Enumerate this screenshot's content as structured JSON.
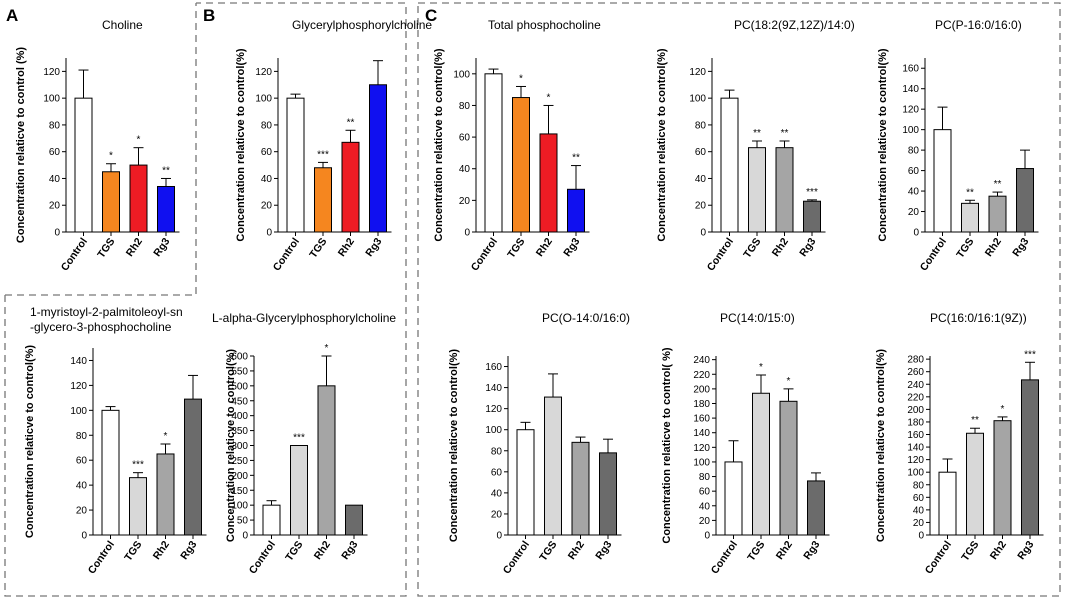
{
  "figure": {
    "panel_labels": [
      "A",
      "B",
      "C"
    ],
    "fill_colors": {
      "white": "#ffffff",
      "orange": "#f5861f",
      "red": "#ee1c24",
      "blue": "#1010f0",
      "light_gray": "#d8d8d8",
      "mid_gray": "#a5a5a5",
      "dark_gray": "#6b6b6b"
    }
  },
  "chart_data": [
    {
      "type": "bar",
      "panel": "A",
      "title": "Choline",
      "ylabel": "Concentration relaticve to control (%)",
      "categories": [
        "Control",
        "TGS",
        "Rh2",
        "Rg3"
      ],
      "values": [
        100,
        45,
        50,
        34
      ],
      "errors": [
        21,
        6,
        13,
        6
      ],
      "significance": [
        "",
        "*",
        "*",
        "**"
      ],
      "colors": [
        "white",
        "orange",
        "red",
        "blue"
      ],
      "ylim": [
        0,
        130
      ],
      "yticks": [
        0,
        20,
        40,
        60,
        80,
        100,
        120
      ]
    },
    {
      "type": "bar",
      "panel": "B",
      "title": "Glycerylphosphorylcholine",
      "ylabel": "Concentration  relaticve to control(%)",
      "categories": [
        "Control",
        "TGS",
        "Rh2",
        "Rg3"
      ],
      "values": [
        100,
        48,
        67,
        110
      ],
      "errors": [
        3,
        4,
        9,
        18
      ],
      "significance": [
        "",
        "***",
        "**",
        ""
      ],
      "colors": [
        "white",
        "orange",
        "red",
        "blue"
      ],
      "ylim": [
        0,
        130
      ],
      "yticks": [
        0,
        20,
        40,
        60,
        80,
        100,
        120
      ]
    },
    {
      "type": "bar",
      "panel": "C",
      "title": "Total phosphocholine",
      "ylabel": "Concentration  relaticve to control(%)",
      "categories": [
        "Control",
        "TGS",
        "Rh2",
        "Rg3"
      ],
      "values": [
        100,
        85,
        62,
        27
      ],
      "errors": [
        3,
        7,
        18,
        15
      ],
      "significance": [
        "",
        "*",
        "*",
        "**"
      ],
      "colors": [
        "white",
        "orange",
        "red",
        "blue"
      ],
      "ylim": [
        0,
        110
      ],
      "yticks": [
        0,
        20,
        40,
        60,
        80,
        100
      ]
    },
    {
      "type": "bar",
      "panel": "C",
      "title": "PC(18:2(9Z,12Z)/14:0)",
      "ylabel": "Concentration relaticve to control(%)",
      "categories": [
        "Control",
        "TGS",
        "Rh2",
        "Rg3"
      ],
      "values": [
        100,
        63,
        63,
        23
      ],
      "errors": [
        6,
        5,
        5,
        1
      ],
      "significance": [
        "",
        "**",
        "**",
        "***"
      ],
      "colors": [
        "white",
        "light_gray",
        "mid_gray",
        "dark_gray"
      ],
      "ylim": [
        0,
        130
      ],
      "yticks": [
        0,
        20,
        40,
        60,
        80,
        100,
        120
      ]
    },
    {
      "type": "bar",
      "panel": "C",
      "title": "PC(P-16:0/16:0)",
      "ylabel": "Concentration  relaticve to control(%)",
      "categories": [
        "Control",
        "TGS",
        "Rh2",
        "Rg3"
      ],
      "values": [
        100,
        28,
        35,
        62
      ],
      "errors": [
        22,
        3,
        4,
        18
      ],
      "significance": [
        "",
        "**",
        "**",
        ""
      ],
      "colors": [
        "white",
        "light_gray",
        "mid_gray",
        "dark_gray"
      ],
      "ylim": [
        0,
        170
      ],
      "yticks": [
        0,
        20,
        40,
        60,
        80,
        100,
        120,
        140,
        160
      ]
    },
    {
      "type": "bar",
      "panel": "A",
      "title": "1-myristoyl-2-palmitoleoyl-sn\n-glycero-3-phosphocholine",
      "ylabel": "Concentration relaticve to control(%)",
      "categories": [
        "Control",
        "TGS",
        "Rh2",
        "Rg3"
      ],
      "values": [
        100,
        46,
        65,
        109
      ],
      "errors": [
        3,
        4,
        8,
        19
      ],
      "significance": [
        "",
        "***",
        "*",
        ""
      ],
      "colors": [
        "white",
        "light_gray",
        "mid_gray",
        "dark_gray"
      ],
      "ylim": [
        0,
        150
      ],
      "yticks": [
        0,
        20,
        40,
        60,
        80,
        100,
        120,
        140
      ]
    },
    {
      "type": "bar",
      "panel": "B",
      "title": "L-alpha-Glycerylphosphorylcholine",
      "ylabel": "Concentration  relaticve to control(%)",
      "categories": [
        "Control",
        "TGS",
        "Rh2",
        "Rg3"
      ],
      "values": [
        100,
        300,
        500,
        100
      ],
      "errors": [
        15,
        0,
        100,
        0
      ],
      "significance": [
        "",
        "***",
        "*",
        ""
      ],
      "colors": [
        "white",
        "light_gray",
        "mid_gray",
        "dark_gray"
      ],
      "ylim": [
        0,
        600
      ],
      "yticks": [
        0,
        50,
        100,
        150,
        200,
        250,
        300,
        350,
        400,
        450,
        500,
        550,
        600
      ]
    },
    {
      "type": "bar",
      "panel": "C",
      "title": "PC(O-14:0/16:0)",
      "ylabel": "Concentration relaticve to control(%)",
      "categories": [
        "Control",
        "TGS",
        "Rh2",
        "Rg3"
      ],
      "values": [
        100,
        131,
        88,
        78
      ],
      "errors": [
        7,
        22,
        5,
        13
      ],
      "significance": [
        "",
        "",
        "",
        ""
      ],
      "colors": [
        "white",
        "light_gray",
        "mid_gray",
        "dark_gray"
      ],
      "ylim": [
        0,
        170
      ],
      "yticks": [
        0,
        20,
        40,
        60,
        80,
        100,
        120,
        140,
        160
      ]
    },
    {
      "type": "bar",
      "panel": "C",
      "title": "PC(14:0/15:0)",
      "ylabel": "Concentration relaticve to control(  %)",
      "categories": [
        "Control",
        "TGS",
        "Rh2",
        "Rg3"
      ],
      "values": [
        100,
        194,
        183,
        74
      ],
      "errors": [
        29,
        25,
        17,
        11
      ],
      "significance": [
        "",
        "*",
        "*",
        ""
      ],
      "colors": [
        "white",
        "light_gray",
        "mid_gray",
        "dark_gray"
      ],
      "ylim": [
        0,
        245
      ],
      "yticks": [
        0,
        20,
        40,
        60,
        80,
        100,
        120,
        140,
        160,
        180,
        200,
        220,
        240
      ]
    },
    {
      "type": "bar",
      "panel": "C",
      "title": "PC(16:0/16:1(9Z))",
      "ylabel": "Concentration relaticve to control(%)",
      "categories": [
        "Control",
        "TGS",
        "Rh2",
        "Rg3"
      ],
      "values": [
        100,
        162,
        182,
        247
      ],
      "errors": [
        21,
        8,
        6,
        28
      ],
      "significance": [
        "",
        "**",
        "*",
        "***"
      ],
      "colors": [
        "white",
        "light_gray",
        "mid_gray",
        "dark_gray"
      ],
      "ylim": [
        0,
        285
      ],
      "yticks": [
        0,
        20,
        40,
        60,
        80,
        100,
        120,
        140,
        160,
        180,
        200,
        220,
        240,
        260,
        280
      ]
    }
  ]
}
